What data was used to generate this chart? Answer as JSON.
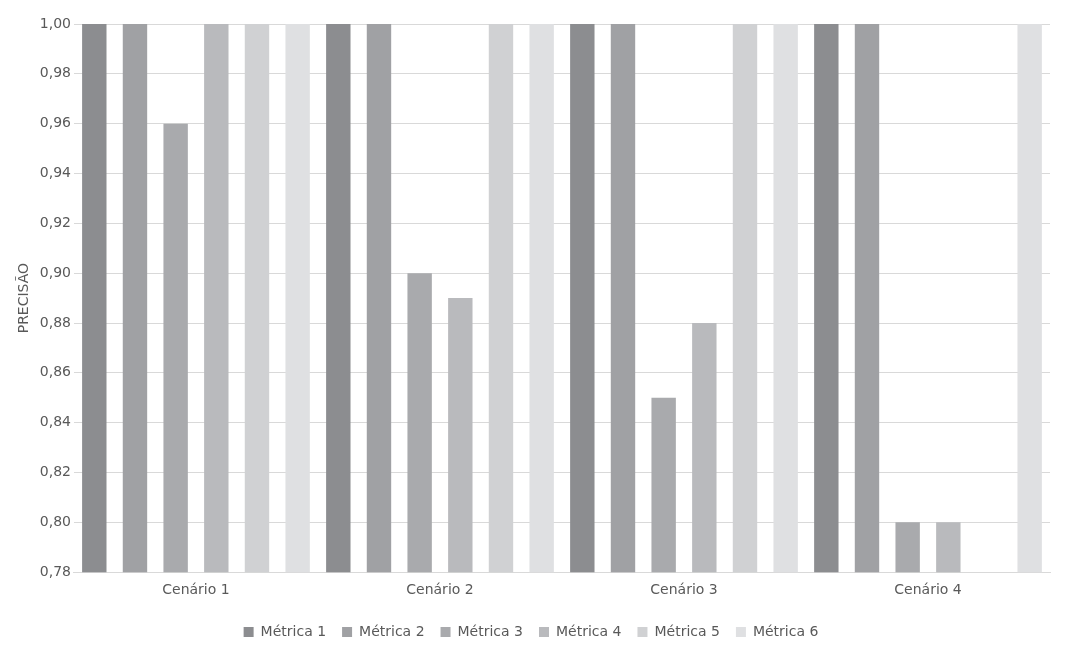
{
  "chart_data": {
    "type": "bar",
    "ylabel": "PRECISÃO",
    "categories": [
      "Cenário 1",
      "Cenário 2",
      "Cenário 3",
      "Cenário 4"
    ],
    "series": [
      {
        "name": "Métrica 1",
        "color": "#8c8d90",
        "values": [
          1.0,
          1.0,
          1.0,
          1.0
        ]
      },
      {
        "name": "Métrica 2",
        "color": "#a0a1a4",
        "values": [
          1.0,
          1.0,
          1.0,
          1.0
        ]
      },
      {
        "name": "Métrica 3",
        "color": "#a9aaad",
        "values": [
          0.96,
          0.9,
          0.85,
          0.8
        ]
      },
      {
        "name": "Métrica 4",
        "color": "#b9babd",
        "values": [
          1.0,
          0.89,
          0.88,
          0.8
        ]
      },
      {
        "name": "Métrica 5",
        "color": "#d0d1d3",
        "values": [
          1.0,
          1.0,
          1.0,
          null
        ]
      },
      {
        "name": "Métrica 6",
        "color": "#dfe0e2",
        "values": [
          1.0,
          1.0,
          1.0,
          1.0
        ]
      }
    ],
    "ylim": [
      0.78,
      1.0
    ],
    "yticks": [
      {
        "value": 0.78,
        "label": "0,78"
      },
      {
        "value": 0.8,
        "label": "0,80"
      },
      {
        "value": 0.82,
        "label": "0,82"
      },
      {
        "value": 0.84,
        "label": "0,84"
      },
      {
        "value": 0.86,
        "label": "0,86"
      },
      {
        "value": 0.88,
        "label": "0,88"
      },
      {
        "value": 0.9,
        "label": "0,90"
      },
      {
        "value": 0.92,
        "label": "0,92"
      },
      {
        "value": 0.94,
        "label": "0,94"
      },
      {
        "value": 0.96,
        "label": "0,96"
      },
      {
        "value": 0.98,
        "label": "0,98"
      },
      {
        "value": 1.0,
        "label": "1,00"
      }
    ],
    "grid": "y",
    "legend": "bottom"
  }
}
